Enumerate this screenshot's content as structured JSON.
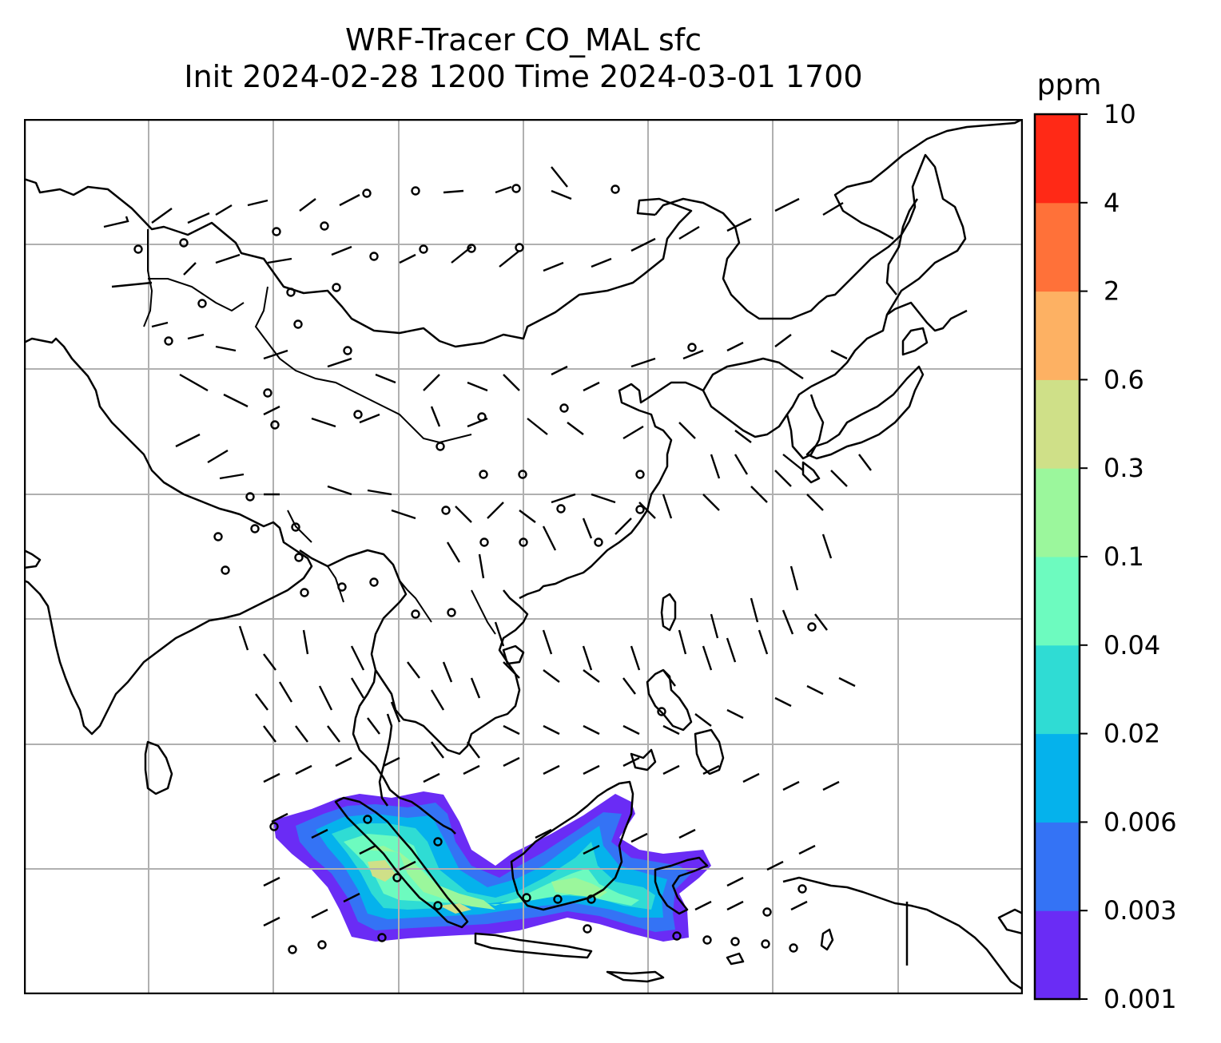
{
  "title": {
    "line1": "WRF-Tracer CO_MAL sfc",
    "line2": "Init 2024-02-28 1200 Time 2024-03-01 1700"
  },
  "colorbar": {
    "unit": "ppm",
    "levels": [
      "0.001",
      "0.003",
      "0.006",
      "0.02",
      "0.04",
      "0.1",
      "0.3",
      "0.6",
      "2",
      "4",
      "10"
    ],
    "colors": [
      "#6a2cf5",
      "#3473f5",
      "#05b2ec",
      "#2fdcd4",
      "#6dfbbf",
      "#9bf79c",
      "#cfe088",
      "#fdb163",
      "#ff7139",
      "#ff2916"
    ]
  },
  "chart_data": {
    "type": "map",
    "title": "WRF-Tracer CO_MAL sfc / Init 2024-02-28 1200 Time 2024-03-01 1700",
    "variable": "CO_MAL surface tracer concentration",
    "unit": "ppm",
    "contour_levels": [
      0.001,
      0.003,
      0.006,
      0.02,
      0.04,
      0.1,
      0.3,
      0.6,
      2,
      4,
      10
    ],
    "plume_region": "Sumatra, Malaysian peninsula and Borneo",
    "max_level_band": [
      0.1,
      0.3
    ],
    "grid": true,
    "overlays": [
      "coastlines",
      "borders",
      "wind barbs"
    ]
  }
}
